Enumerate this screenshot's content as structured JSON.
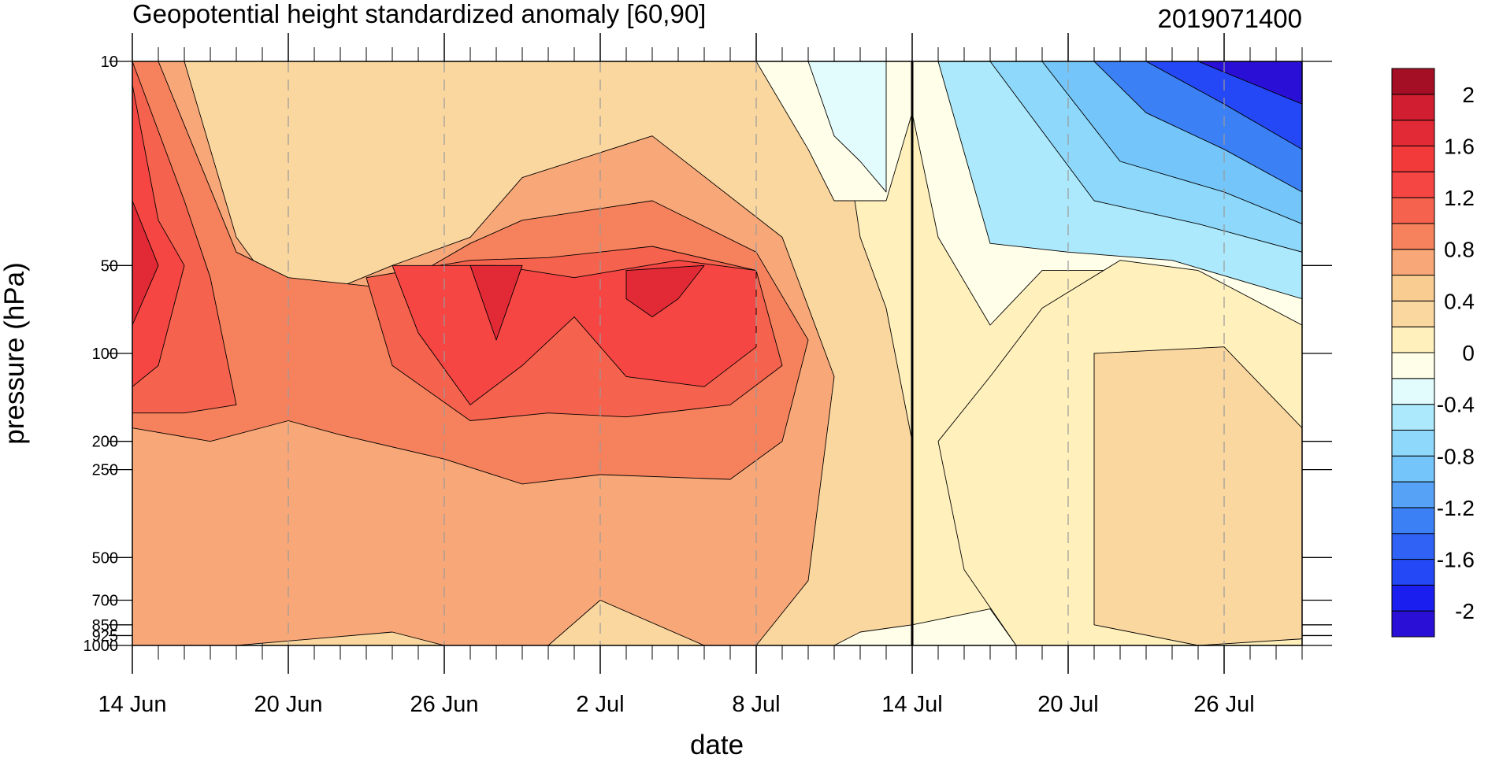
{
  "chart_data": {
    "type": "heatmap",
    "subtype": "filled-contour",
    "title": "Geopotential height standardized anomaly [60,90]",
    "stamp": "2019071400",
    "xlabel": "date",
    "ylabel": "pressure (hPa)",
    "y_scale": "log",
    "y_reversed": true,
    "xlim": [
      "2019-06-14",
      "2019-07-29"
    ],
    "ylim": [
      1000,
      10
    ],
    "analysis_date": "2019-07-14",
    "x_ticks": [
      {
        "date": "2019-06-14",
        "label": "14 Jun"
      },
      {
        "date": "2019-06-20",
        "label": "20 Jun"
      },
      {
        "date": "2019-06-26",
        "label": "26 Jun"
      },
      {
        "date": "2019-07-02",
        "label": "2 Jul"
      },
      {
        "date": "2019-07-08",
        "label": "8 Jul"
      },
      {
        "date": "2019-07-14",
        "label": "14 Jul"
      },
      {
        "date": "2019-07-20",
        "label": "20 Jul"
      },
      {
        "date": "2019-07-26",
        "label": "26 Jul"
      }
    ],
    "y_ticks": [
      {
        "p": 10,
        "label": "10"
      },
      {
        "p": 50,
        "label": "50"
      },
      {
        "p": 100,
        "label": "100"
      },
      {
        "p": 200,
        "label": "200"
      },
      {
        "p": 250,
        "label": "250"
      },
      {
        "p": 500,
        "label": "500"
      },
      {
        "p": 700,
        "label": "700"
      },
      {
        "p": 850,
        "label": "850"
      },
      {
        "p": 925,
        "label": "925"
      },
      {
        "p": 1000,
        "label": "1000"
      }
    ],
    "colorbar": {
      "levels": [
        -2.2,
        -2.0,
        -1.8,
        -1.6,
        -1.4,
        -1.2,
        -1.0,
        -0.8,
        -0.6,
        -0.4,
        -0.2,
        0,
        0.2,
        0.4,
        0.6,
        0.8,
        1.0,
        1.2,
        1.4,
        1.6,
        1.8,
        2.0,
        2.2
      ],
      "colors": [
        "#2a0fd6",
        "#1a1ff0",
        "#2448f5",
        "#2f62f5",
        "#3c80f5",
        "#55a2f7",
        "#74c6fa",
        "#8ed8fb",
        "#ade9fc",
        "#e2fbfc",
        "#fffee8",
        "#fff0bc",
        "#fbd7a0",
        "#f9cd92",
        "#f8a878",
        "#f6825d",
        "#f5624d",
        "#f54644",
        "#f33a3a",
        "#e12a35",
        "#d11e30",
        "#a50f25"
      ],
      "tick_labels": [
        {
          "value": -2.0,
          "label": "-2"
        },
        {
          "value": -1.6,
          "label": "-1.6"
        },
        {
          "value": -1.2,
          "label": "-1.2"
        },
        {
          "value": -0.8,
          "label": "-0.8"
        },
        {
          "value": -0.4,
          "label": "-0.4"
        },
        {
          "value": 0,
          "label": "0"
        },
        {
          "value": 0.4,
          "label": "0.4"
        },
        {
          "value": 0.8,
          "label": "0.8"
        },
        {
          "value": 1.2,
          "label": "1.2"
        },
        {
          "value": 1.6,
          "label": "1.6"
        },
        {
          "value": 2.0,
          "label": "2"
        }
      ]
    },
    "regions": [
      {
        "name": "warm-background",
        "level": 0.3,
        "points": [
          [
            "2019-06-14",
            10
          ],
          [
            "2019-07-11",
            10
          ],
          [
            "2019-07-12",
            40
          ],
          [
            "2019-07-13",
            70
          ],
          [
            "2019-07-14",
            200
          ],
          [
            "2019-07-14",
            1000
          ],
          [
            "2019-06-14",
            1000
          ]
        ]
      },
      {
        "name": "cool-stratosphere",
        "level": -0.1,
        "points": [
          [
            "2019-07-08",
            10
          ],
          [
            "2019-07-29",
            10
          ],
          [
            "2019-07-29",
            95
          ],
          [
            "2019-07-25",
            70
          ],
          [
            "2019-07-22",
            52
          ],
          [
            "2019-07-19",
            52
          ],
          [
            "2019-07-17",
            80
          ],
          [
            "2019-07-15",
            40
          ],
          [
            "2019-07-14",
            15
          ],
          [
            "2019-07-13",
            30
          ],
          [
            "2019-07-11",
            30
          ],
          [
            "2019-07-10",
            20
          ]
        ]
      },
      {
        "name": "cool-core-midmonth",
        "level": -0.3,
        "points": [
          [
            "2019-07-10",
            10
          ],
          [
            "2019-07-13",
            10
          ],
          [
            "2019-07-13",
            28
          ],
          [
            "2019-07-12",
            22
          ],
          [
            "2019-07-11",
            18
          ]
        ]
      },
      {
        "name": "cool-band-1",
        "level": -0.5,
        "points": [
          [
            "2019-07-15",
            10
          ],
          [
            "2019-07-29",
            10
          ],
          [
            "2019-07-29",
            65
          ],
          [
            "2019-07-24",
            48
          ],
          [
            "2019-07-20",
            45
          ],
          [
            "2019-07-17",
            42
          ]
        ]
      },
      {
        "name": "cool-band-2",
        "level": -0.7,
        "points": [
          [
            "2019-07-17",
            10
          ],
          [
            "2019-07-29",
            10
          ],
          [
            "2019-07-29",
            45
          ],
          [
            "2019-07-25",
            36
          ],
          [
            "2019-07-21",
            30
          ]
        ]
      },
      {
        "name": "cool-band-3",
        "level": -0.9,
        "points": [
          [
            "2019-07-19",
            10
          ],
          [
            "2019-07-29",
            10
          ],
          [
            "2019-07-29",
            36
          ],
          [
            "2019-07-26",
            28
          ],
          [
            "2019-07-22",
            22
          ]
        ]
      },
      {
        "name": "cool-band-4",
        "level": -1.3,
        "points": [
          [
            "2019-07-21",
            10
          ],
          [
            "2019-07-29",
            10
          ],
          [
            "2019-07-29",
            28
          ],
          [
            "2019-07-26",
            20
          ],
          [
            "2019-07-23",
            15
          ]
        ]
      },
      {
        "name": "cool-band-5",
        "level": -1.7,
        "points": [
          [
            "2019-07-23",
            10
          ],
          [
            "2019-07-29",
            10
          ],
          [
            "2019-07-29",
            20
          ],
          [
            "2019-07-26",
            14
          ]
        ]
      },
      {
        "name": "cool-core-end",
        "level": -2.1,
        "points": [
          [
            "2019-07-25",
            10
          ],
          [
            "2019-07-29",
            10
          ],
          [
            "2019-07-29",
            14
          ]
        ]
      },
      {
        "name": "cool-surface-mid",
        "level": -0.1,
        "points": [
          [
            "2019-07-11",
            1000
          ],
          [
            "2019-07-12",
            900
          ],
          [
            "2019-07-14",
            850
          ],
          [
            "2019-07-17",
            750
          ],
          [
            "2019-07-18",
            1000
          ]
        ]
      },
      {
        "name": "cool-surface-early",
        "level": -0.1,
        "points": [
          [
            "2019-06-17",
            1000
          ],
          [
            "2019-06-18",
            880
          ],
          [
            "2019-06-19",
            960
          ],
          [
            "2019-06-19",
            1000
          ]
        ]
      },
      {
        "name": "neutral-late",
        "level": 0.1,
        "points": [
          [
            "2019-07-17",
            120
          ],
          [
            "2019-07-19",
            70
          ],
          [
            "2019-07-22",
            48
          ],
          [
            "2019-07-25",
            52
          ],
          [
            "2019-07-29",
            80
          ],
          [
            "2019-07-29",
            1000
          ],
          [
            "2019-07-18",
            1000
          ],
          [
            "2019-07-16",
            550
          ],
          [
            "2019-07-15",
            200
          ]
        ]
      },
      {
        "name": "warm-late-trough",
        "level": 0.3,
        "points": [
          [
            "2019-07-21",
            100
          ],
          [
            "2019-07-26",
            95
          ],
          [
            "2019-07-29",
            180
          ],
          [
            "2019-07-29",
            950
          ],
          [
            "2019-07-25",
            1000
          ],
          [
            "2019-07-21",
            850
          ]
        ]
      },
      {
        "name": "band-0.6",
        "level": 0.6,
        "points": [
          [
            "2019-06-14",
            10
          ],
          [
            "2019-06-16",
            10
          ],
          [
            "2019-06-18",
            40
          ],
          [
            "2019-06-20",
            70
          ],
          [
            "2019-06-24",
            50
          ],
          [
            "2019-06-27",
            40
          ],
          [
            "2019-06-29",
            25
          ],
          [
            "2019-07-04",
            18
          ],
          [
            "2019-07-09",
            40
          ],
          [
            "2019-07-11",
            120
          ],
          [
            "2019-07-10",
            600
          ],
          [
            "2019-07-08",
            1000
          ],
          [
            "2019-07-06",
            1000
          ],
          [
            "2019-07-02",
            700
          ],
          [
            "2019-06-30",
            1000
          ],
          [
            "2019-06-26",
            1000
          ],
          [
            "2019-06-24",
            900
          ],
          [
            "2019-06-18",
            1000
          ],
          [
            "2019-06-14",
            1000
          ]
        ]
      },
      {
        "name": "band-0.8",
        "level": 0.8,
        "points": [
          [
            "2019-06-14",
            10
          ],
          [
            "2019-06-15",
            10
          ],
          [
            "2019-06-18",
            45
          ],
          [
            "2019-06-20",
            55
          ],
          [
            "2019-06-24",
            60
          ],
          [
            "2019-06-27",
            42
          ],
          [
            "2019-06-29",
            35
          ],
          [
            "2019-07-04",
            30
          ],
          [
            "2019-07-08",
            45
          ],
          [
            "2019-07-10",
            90
          ],
          [
            "2019-07-09",
            200
          ],
          [
            "2019-07-07",
            270
          ],
          [
            "2019-07-02",
            260
          ],
          [
            "2019-06-29",
            280
          ],
          [
            "2019-06-26",
            230
          ],
          [
            "2019-06-22",
            190
          ],
          [
            "2019-06-20",
            170
          ],
          [
            "2019-06-17",
            200
          ],
          [
            "2019-06-14",
            180
          ]
        ]
      },
      {
        "name": "band-1.0",
        "level": 1.0,
        "points": [
          [
            "2019-06-14",
            10
          ],
          [
            "2019-06-16",
            30
          ],
          [
            "2019-06-17",
            55
          ],
          [
            "2019-06-18",
            150
          ],
          [
            "2019-06-16",
            160
          ],
          [
            "2019-06-14",
            160
          ]
        ]
      },
      {
        "name": "band-1.0-centre",
        "level": 1.0,
        "points": [
          [
            "2019-06-23",
            55
          ],
          [
            "2019-06-27",
            48
          ],
          [
            "2019-06-30",
            47
          ],
          [
            "2019-07-04",
            43
          ],
          [
            "2019-07-08",
            52
          ],
          [
            "2019-07-09",
            110
          ],
          [
            "2019-07-07",
            150
          ],
          [
            "2019-07-03",
            165
          ],
          [
            "2019-06-30",
            160
          ],
          [
            "2019-06-27",
            170
          ],
          [
            "2019-06-24",
            110
          ]
        ]
      },
      {
        "name": "band-1.2-centre",
        "level": 1.2,
        "points": [
          [
            "2019-06-24",
            50
          ],
          [
            "2019-06-28",
            50
          ],
          [
            "2019-07-01",
            55
          ],
          [
            "2019-07-05",
            48
          ],
          [
            "2019-07-08",
            52
          ],
          [
            "2019-07-08",
            95
          ],
          [
            "2019-07-06",
            130
          ],
          [
            "2019-07-03",
            120
          ],
          [
            "2019-07-01",
            75
          ],
          [
            "2019-06-29",
            110
          ],
          [
            "2019-06-27",
            150
          ],
          [
            "2019-06-25",
            85
          ]
        ]
      },
      {
        "name": "band-1.2-west",
        "level": 1.2,
        "points": [
          [
            "2019-06-14",
            12
          ],
          [
            "2019-06-15",
            35
          ],
          [
            "2019-06-16",
            50
          ],
          [
            "2019-06-15",
            110
          ],
          [
            "2019-06-14",
            130
          ]
        ]
      },
      {
        "name": "band-1.6-west",
        "level": 1.6,
        "points": [
          [
            "2019-06-14",
            30
          ],
          [
            "2019-06-15",
            50
          ],
          [
            "2019-06-14",
            80
          ]
        ]
      },
      {
        "name": "band-1.6-centre-a",
        "level": 1.6,
        "points": [
          [
            "2019-06-27",
            50
          ],
          [
            "2019-06-29",
            50
          ],
          [
            "2019-06-28",
            90
          ]
        ]
      },
      {
        "name": "band-1.6-centre-b",
        "level": 1.6,
        "points": [
          [
            "2019-07-03",
            52
          ],
          [
            "2019-07-06",
            50
          ],
          [
            "2019-07-05",
            65
          ],
          [
            "2019-07-04",
            75
          ],
          [
            "2019-07-03",
            65
          ]
        ]
      }
    ]
  }
}
